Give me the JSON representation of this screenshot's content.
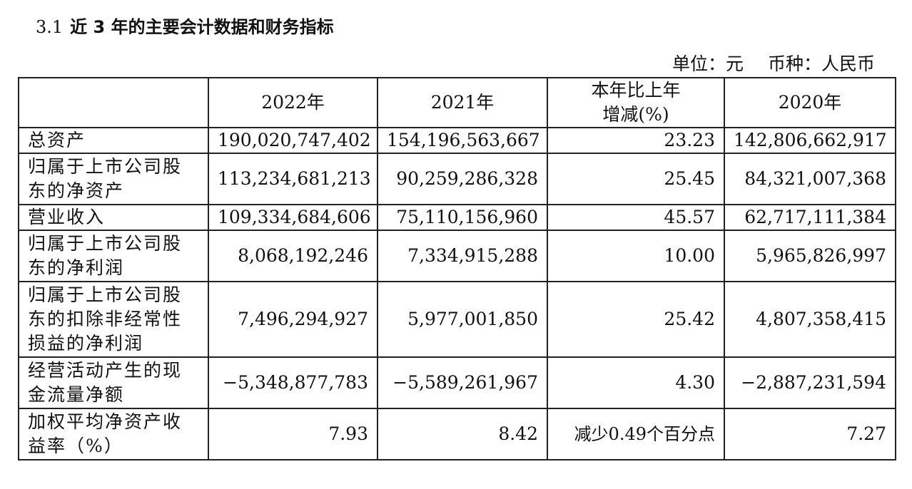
{
  "section": {
    "number": "3.1",
    "title": "近 3 年的主要会计数据和财务指标"
  },
  "unit_note": {
    "unit": "单位：元",
    "currency": "币种：人民币"
  },
  "table": {
    "columns": [
      "",
      "2022年",
      "2021年",
      "本年比上年增减(%)",
      "2020年"
    ],
    "change_header_line1": "本年比上年",
    "change_header_line2": "增减(%)",
    "rows": [
      {
        "label": "总资产",
        "y2022": "190,020,747,402",
        "y2021": "154,196,563,667",
        "change": "23.23",
        "y2020": "142,806,662,917"
      },
      {
        "label": "归属于上市公司股东的净资产",
        "y2022": "113,234,681,213",
        "y2021": "90,259,286,328",
        "change": "25.45",
        "y2020": "84,321,007,368"
      },
      {
        "label": "营业收入",
        "y2022": "109,334,684,606",
        "y2021": "75,110,156,960",
        "change": "45.57",
        "y2020": "62,717,111,384"
      },
      {
        "label": "归属于上市公司股东的净利润",
        "y2022": "8,068,192,246",
        "y2021": "7,334,915,288",
        "change": "10.00",
        "y2020": "5,965,826,997"
      },
      {
        "label": "归属于上市公司股东的扣除非经常性损益的净利润",
        "y2022": "7,496,294,927",
        "y2021": "5,977,001,850",
        "change": "25.42",
        "y2020": "4,807,358,415"
      },
      {
        "label": "经营活动产生的现金流量净额",
        "y2022": "−5,348,877,783",
        "y2021": "−5,589,261,967",
        "change": "4.30",
        "y2020": "−2,887,231,594"
      },
      {
        "label": "加权平均净资产收益率（%）",
        "y2022": "7.93",
        "y2021": "8.42",
        "change": "减少0.49个百分点",
        "y2020": "7.27"
      }
    ]
  }
}
